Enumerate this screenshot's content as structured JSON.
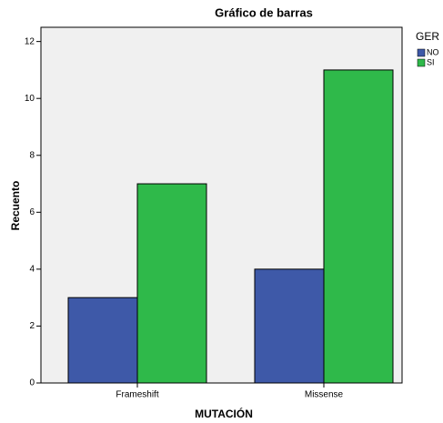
{
  "chart_data": {
    "type": "bar",
    "title": "Gráfico de barras",
    "x_label": "MUTACIÓN",
    "y_label": "Recuento",
    "categories": [
      "Frameshift",
      "Missense"
    ],
    "legend_title": "GER",
    "series": [
      {
        "name": "NO",
        "color": "#3e59a8",
        "values": [
          3,
          4
        ]
      },
      {
        "name": "SI",
        "color": "#2fb94a",
        "values": [
          7,
          11
        ]
      }
    ],
    "ylim": [
      0,
      12.5
    ],
    "yticks": [
      0,
      2,
      4,
      6,
      8,
      10,
      12
    ],
    "grid": false,
    "legend": "right"
  }
}
